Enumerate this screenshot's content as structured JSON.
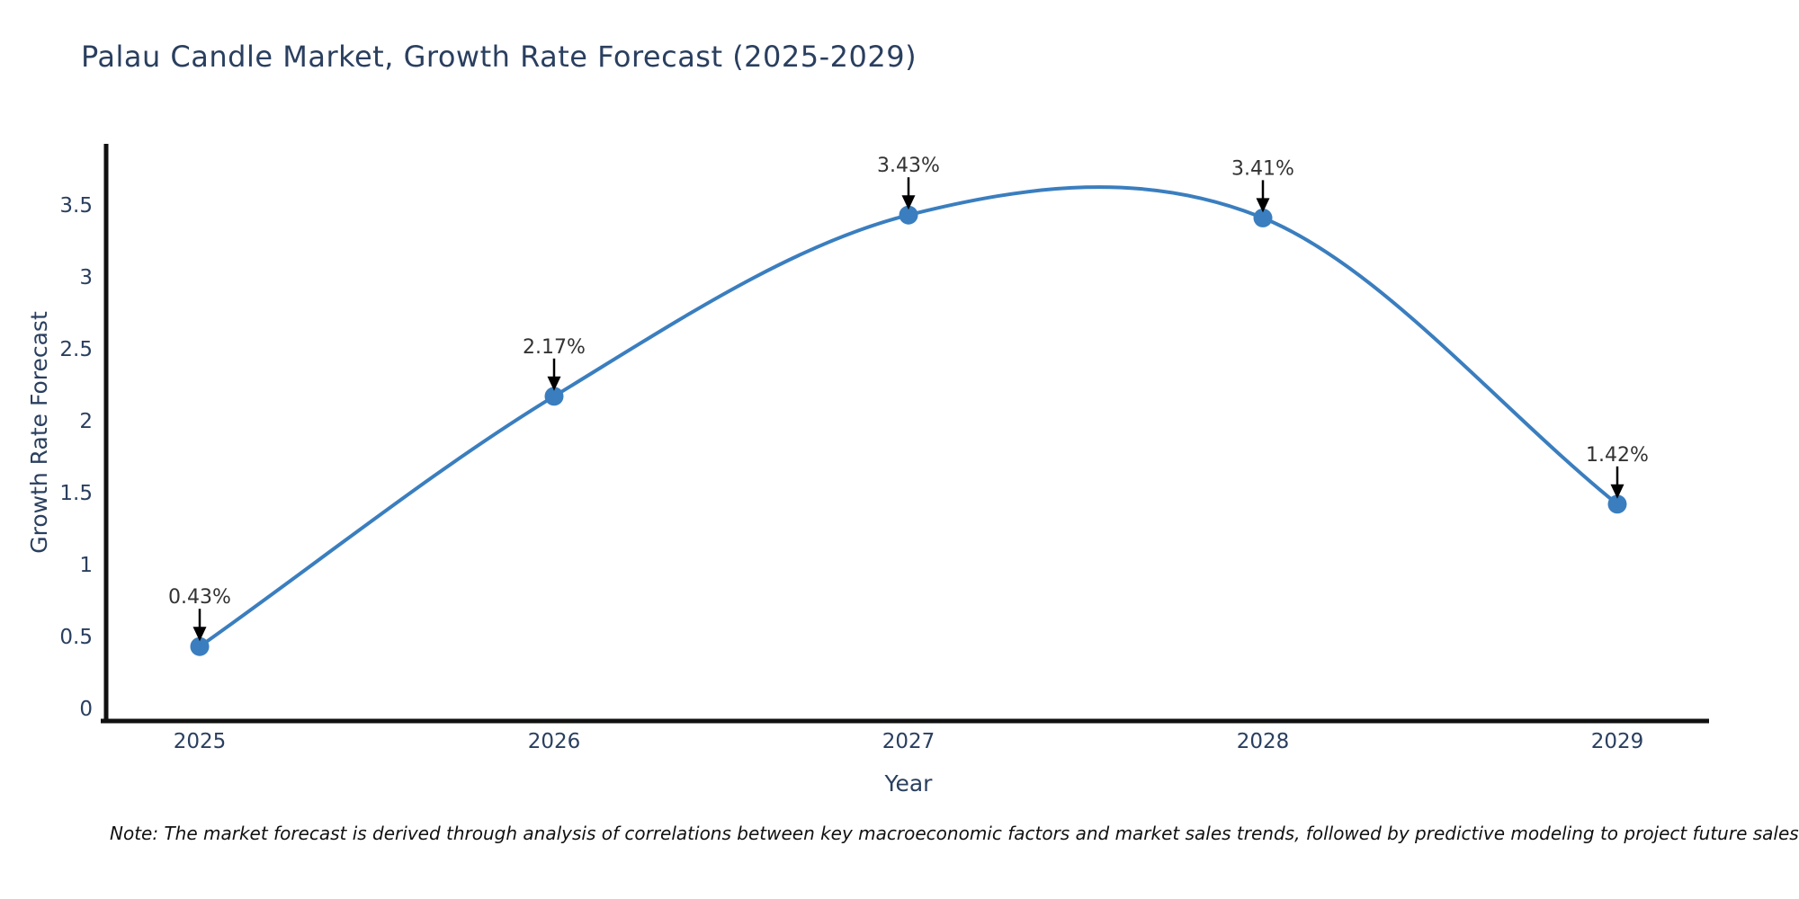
{
  "title": "Palau Candle Market, Growth Rate Forecast (2025-2029)",
  "note": "Note: The market forecast is derived through analysis of correlations between key macroeconomic factors and market sales trends, followed by predictive modeling to project future sales",
  "chart_data": {
    "type": "line",
    "title": "Palau Candle Market, Growth Rate Forecast (2025-2029)",
    "x": [
      "2025",
      "2026",
      "2027",
      "2028",
      "2029"
    ],
    "values": [
      0.43,
      2.17,
      3.43,
      3.41,
      1.42
    ],
    "point_labels": [
      "0.43%",
      "2.17%",
      "3.43%",
      "3.41%",
      "1.42%"
    ],
    "xlabel": "Year",
    "ylabel": "Growth Rate Forecast",
    "yticks": [
      0,
      0.5,
      1,
      1.5,
      2,
      2.5,
      3,
      3.5
    ],
    "ylim": [
      0,
      3.93
    ],
    "line_shape": "spline",
    "grid": false,
    "legend": "none",
    "colors": {
      "line": "#3a7ebf",
      "marker": "#3a7ebf",
      "axis": "#111111",
      "title_text": "#2a3f5f",
      "tick_text": "#2a3f5f",
      "axis_title_text": "#2a3f5f",
      "annotation_text": "#333333",
      "arrow": "#000000",
      "background": "#ffffff"
    }
  }
}
